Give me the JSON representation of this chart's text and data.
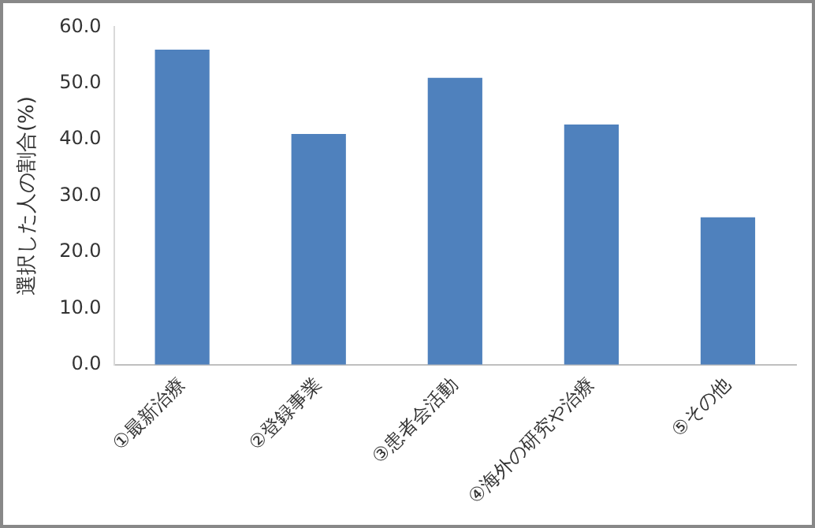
{
  "chart_data": {
    "type": "bar",
    "ylabel": "選択した人の割合(%)",
    "categories": [
      "①最新治療",
      "②登録事業",
      "③患者会活動",
      "④海外の研究や治療",
      "⑤その他"
    ],
    "values": [
      56.0,
      41.0,
      51.0,
      42.7,
      26.2
    ],
    "color": "#4f81bd",
    "ylim": [
      0,
      60
    ],
    "yticks": [
      {
        "value": 0,
        "label": "0.0"
      },
      {
        "value": 10,
        "label": "10.0"
      },
      {
        "value": 20,
        "label": "20.0"
      },
      {
        "value": 30,
        "label": "30.0"
      },
      {
        "value": 40,
        "label": "40.0"
      },
      {
        "value": 50,
        "label": "50.0"
      },
      {
        "value": 60,
        "label": "60.0"
      }
    ],
    "grid": false,
    "legend": false
  }
}
